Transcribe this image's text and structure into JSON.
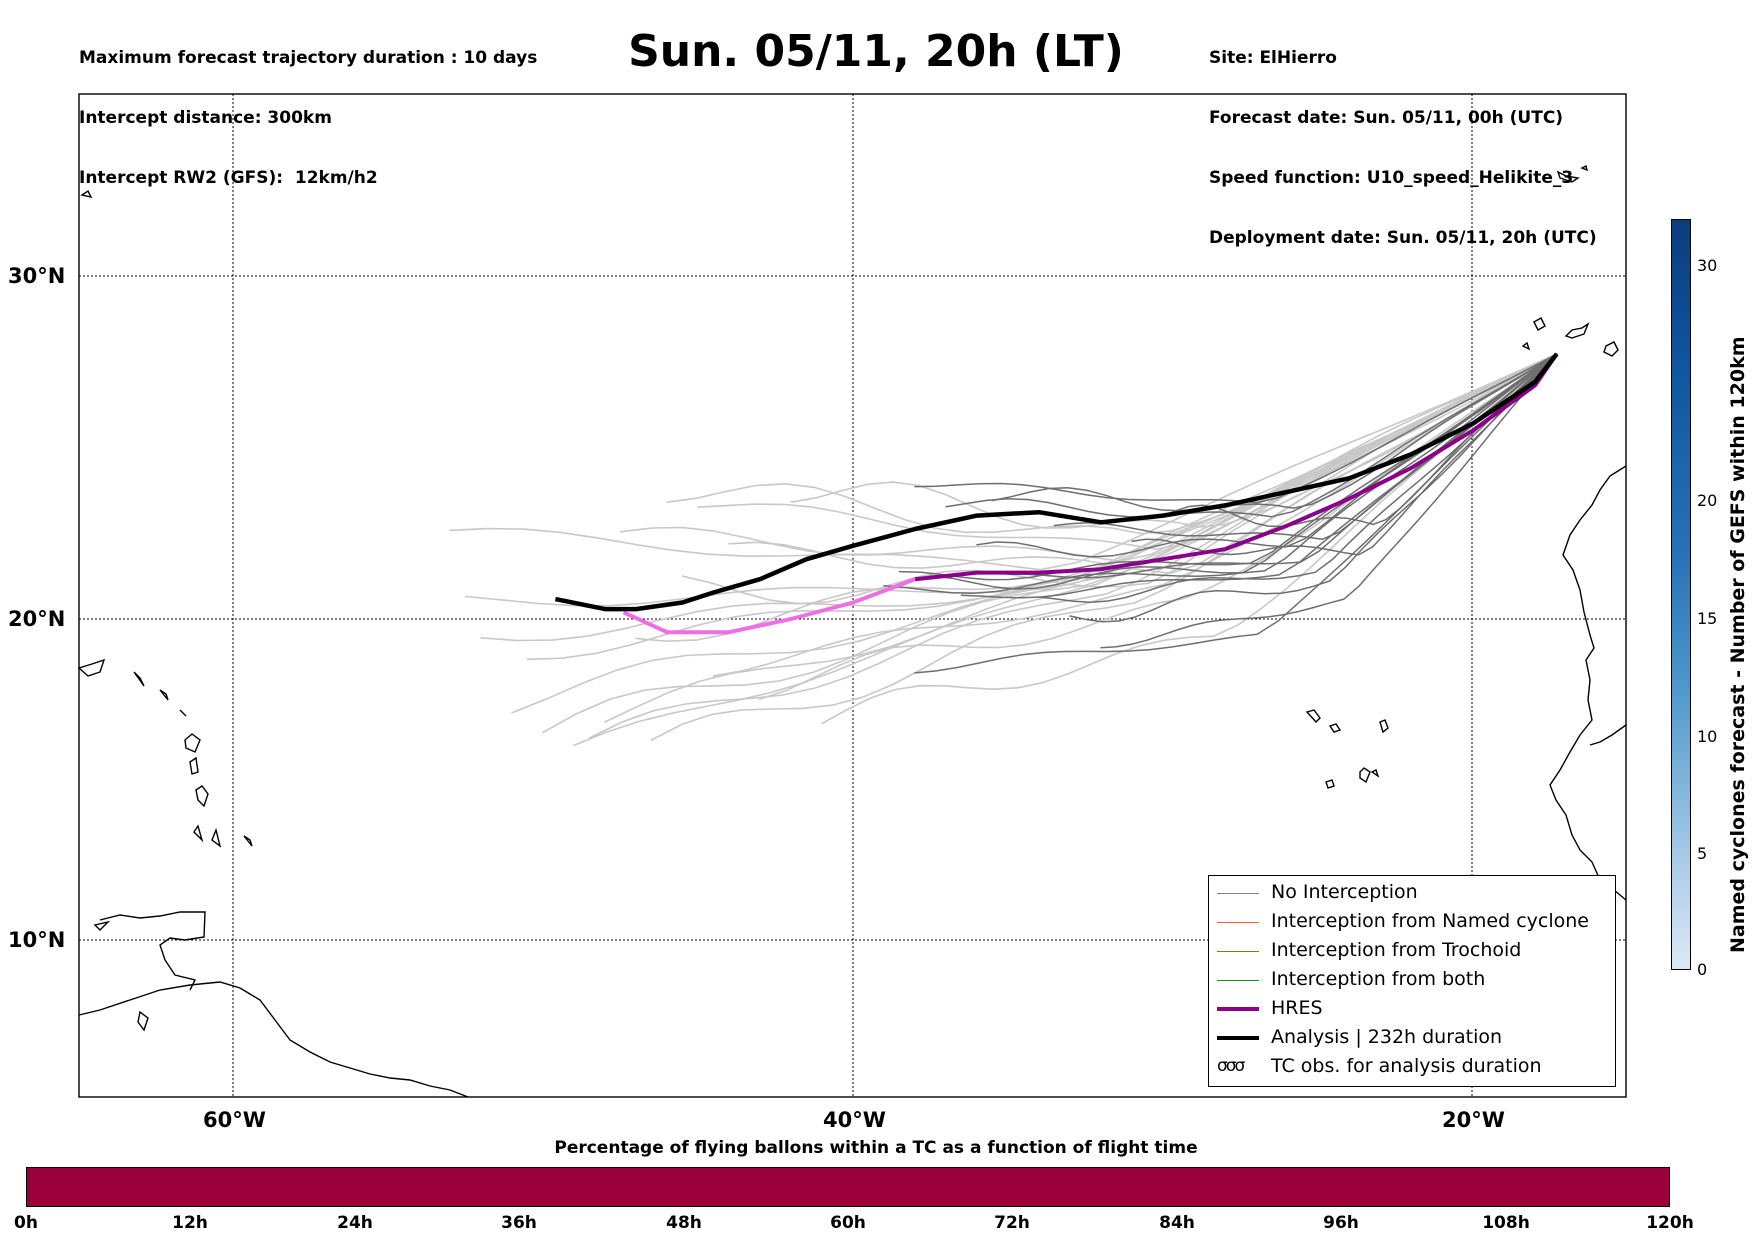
{
  "header": {
    "left_lines": [
      "Maximum forecast trajectory duration : 10 days",
      "Intercept distance: 300km",
      "Intercept RW2 (GFS):  12km/h2"
    ],
    "title": "Sun. 05/11, 20h (LT)",
    "right_lines": [
      "Site: ElHierro",
      "Forecast date: Sun. 05/11, 00h (UTC)",
      "Speed function: U10_speed_Helikite_3",
      "Deployment date: Sun. 05/11, 20h (UTC)"
    ]
  },
  "map": {
    "lat_labels": [
      "30°N",
      "20°N",
      "10°N"
    ],
    "lon_labels": [
      "60°W",
      "40°W",
      "20°W"
    ],
    "grid": "dotted"
  },
  "legend": {
    "items": [
      {
        "label": "No Interception",
        "color": "#808080",
        "style": "thin"
      },
      {
        "label": "Interception from Named cyclone",
        "color": "#ff5a1f",
        "style": "thin"
      },
      {
        "label": "Interception from Trochoid",
        "color": "#808000",
        "style": "thin"
      },
      {
        "label": "Interception from both",
        "color": "#228b22",
        "style": "thin"
      },
      {
        "label": "HRES",
        "color": "#8b008b",
        "style": "thick"
      },
      {
        "label": "Analysis | 232h duration",
        "color": "#000000",
        "style": "thick"
      },
      {
        "label": "TC obs. for analysis duration",
        "symbol": "hurricane-icon"
      }
    ]
  },
  "colorbar_right": {
    "title": "Named cyclones forecast - Number of GEFS within 120km",
    "ticks": [
      "0",
      "5",
      "10",
      "15",
      "20",
      "30"
    ],
    "color_low": "#dce9f6",
    "color_high": "#0b3d7c"
  },
  "colorbar_bottom": {
    "title": "Percentage of flying ballons within a TC as a function of flight time",
    "ticks": [
      "0h",
      "12h",
      "24h",
      "36h",
      "48h",
      "60h",
      "72h",
      "84h",
      "96h",
      "108h",
      "120h"
    ],
    "color": "#9c003c"
  },
  "chart_data": {
    "type": "map",
    "region": {
      "lon": [
        -65,
        -15
      ],
      "lat": [
        5,
        35
      ]
    },
    "hres": {
      "color": "#8b008b",
      "early_color": "#ee6ee8",
      "points": [
        [
          -17.3,
          27.8
        ],
        [
          -18,
          26.9
        ],
        [
          -20,
          25.6
        ],
        [
          -22,
          24.5
        ],
        [
          -24,
          23.6
        ],
        [
          -26,
          22.8
        ],
        [
          -28,
          22.1
        ],
        [
          -30,
          21.8
        ],
        [
          -32,
          21.5
        ],
        [
          -34,
          21.4
        ],
        [
          -36,
          21.4
        ],
        [
          -38,
          21.2
        ],
        [
          -40,
          20.5
        ],
        [
          -42,
          20.0
        ],
        [
          -44,
          19.6
        ],
        [
          -46,
          19.6
        ],
        [
          -47.4,
          20.2
        ]
      ]
    },
    "analysis": {
      "color": "#000000",
      "points": [
        [
          -17.3,
          27.8
        ],
        [
          -18,
          27.0
        ],
        [
          -20,
          25.8
        ],
        [
          -22,
          24.9
        ],
        [
          -24,
          24.2
        ],
        [
          -26,
          23.8
        ],
        [
          -28,
          23.4
        ],
        [
          -30,
          23.1
        ],
        [
          -32,
          22.9
        ],
        [
          -34,
          23.2
        ],
        [
          -36,
          23.1
        ],
        [
          -38,
          22.7
        ],
        [
          -40,
          22.2
        ],
        [
          -41.5,
          21.8
        ],
        [
          -43,
          21.2
        ],
        [
          -44.5,
          20.8
        ],
        [
          -45.5,
          20.5
        ],
        [
          -47,
          20.3
        ],
        [
          -48,
          20.3
        ],
        [
          -49.6,
          20.6
        ]
      ]
    }
  }
}
